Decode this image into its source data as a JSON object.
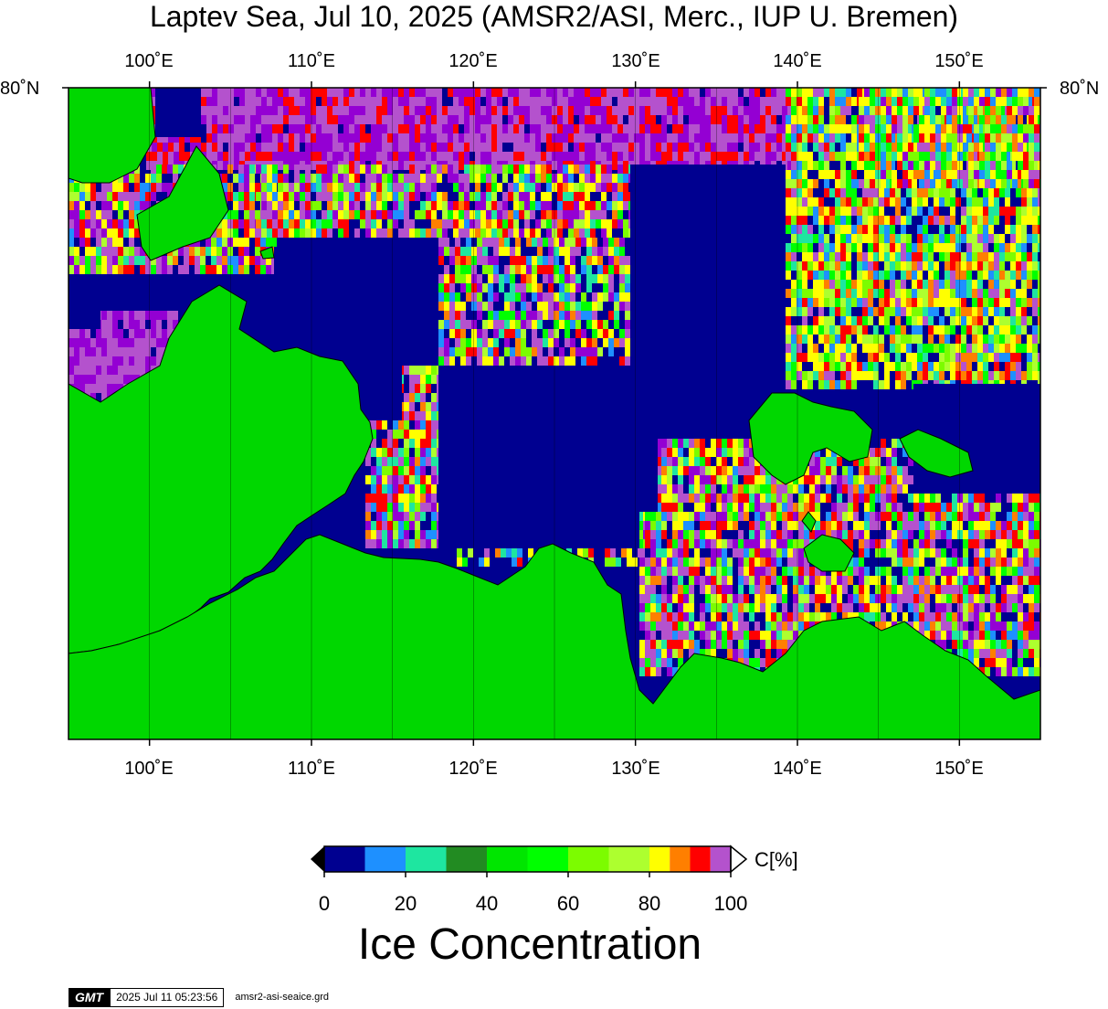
{
  "title": "Laptev Sea, Jul 10, 2025 (AMSR2/ASI, Merc., IUP U. Bremen)",
  "map": {
    "lon_ticks": [
      "100˚E",
      "110˚E",
      "120˚E",
      "130˚E",
      "140˚E",
      "150˚E"
    ],
    "lat_label": "80˚N",
    "lon_range": [
      95,
      155
    ],
    "land_color": "#00d700",
    "open_water_color": "#000090"
  },
  "colorbar": {
    "colors": [
      "#000090",
      "#1e90ff",
      "#1ee6a0",
      "#228b22",
      "#00e600",
      "#00ff00",
      "#7cfc00",
      "#adff2f",
      "#ffff00",
      "#ff7f00",
      "#ff0000",
      "#b452cd",
      "#9400d3"
    ],
    "tick_labels": [
      "0",
      "20",
      "40",
      "60",
      "80",
      "100"
    ],
    "unit": "C[%]",
    "title": "Ice Concentration"
  },
  "stamp": {
    "logo": "GMT",
    "timestamp": "2025 Jul 11 05:23:56",
    "filename": "amsr2-asi-seaice.grd"
  }
}
